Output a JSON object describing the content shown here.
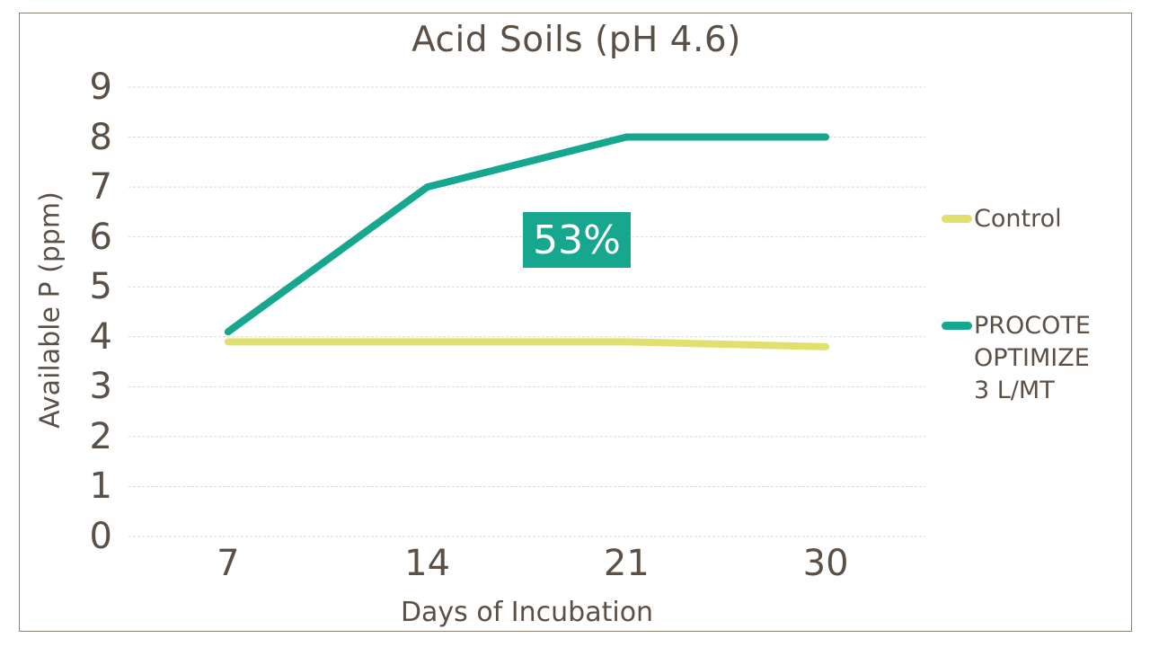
{
  "chart_data": {
    "type": "line",
    "title": "Acid Soils (pH 4.6)",
    "xlabel": "Days of Incubation",
    "ylabel": "Available P (ppm)",
    "categories": [
      "7",
      "14",
      "21",
      "30"
    ],
    "series": [
      {
        "name": "Control",
        "values": [
          3.9,
          3.9,
          3.9,
          3.8
        ],
        "color": "#dfe06e"
      },
      {
        "name": "PROCOTE OPTIMIZE 3 L/MT",
        "values": [
          4.1,
          7.0,
          8.0,
          8.0
        ],
        "color": "#17a78f"
      }
    ],
    "ylim": [
      0,
      9
    ],
    "yticks": [
      0,
      1,
      2,
      3,
      4,
      5,
      6,
      7,
      8,
      9
    ],
    "grid": true,
    "legend_position": "right",
    "annotation": {
      "text": "53%",
      "bg": "#17a78f",
      "color": "#ffffff"
    }
  },
  "legend": {
    "items": [
      {
        "label": "Control",
        "color": "#dfe06e"
      },
      {
        "label": "PROCOTE OPTIMIZE 3 L/MT",
        "color": "#17a78f"
      }
    ]
  },
  "colors": {
    "text": "#5a5046",
    "gridline": "#d9d9d9",
    "frame_border": "#8d8276",
    "background": "#ffffff"
  }
}
